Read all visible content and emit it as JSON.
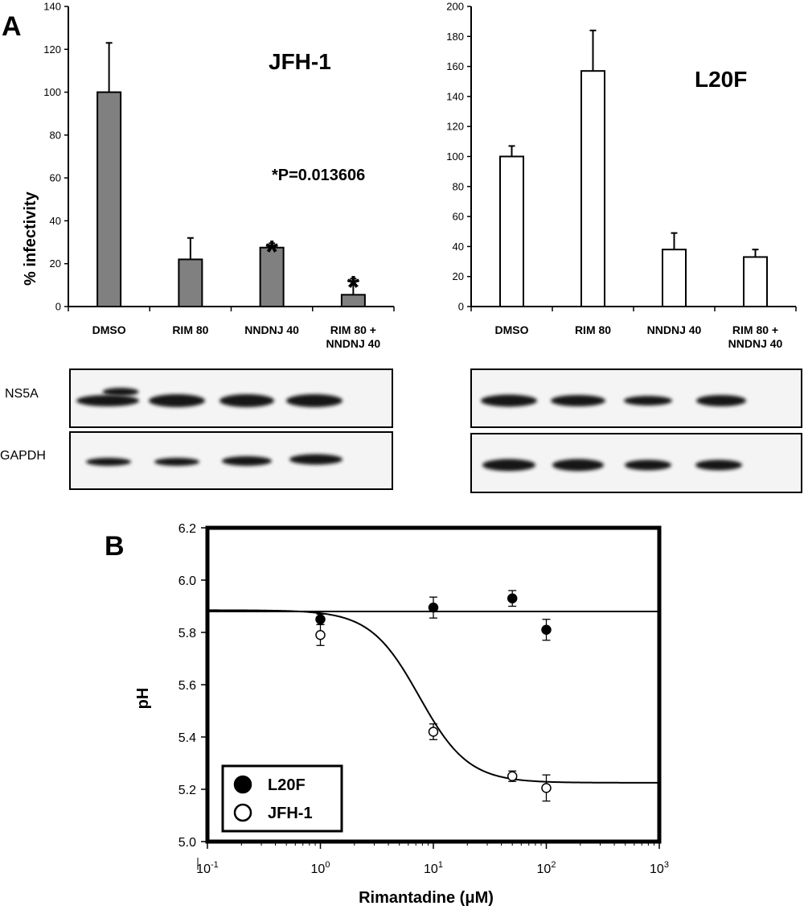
{
  "panel_labels": {
    "a": "A",
    "b": "B"
  },
  "blots": {
    "row_labels": [
      "NS5A",
      "GAPDH"
    ]
  },
  "chart_data": [
    {
      "type": "bar",
      "title": "JFH-1",
      "ylabel": "% infectivity",
      "xlabel": "",
      "ylim": [
        0,
        140
      ],
      "yticks": [
        0,
        20,
        40,
        60,
        80,
        100,
        120,
        140
      ],
      "categories": [
        "DMSO",
        "RIM 80",
        "NNDNJ 40",
        "RIM 80 + NNDNJ 40"
      ],
      "category_lines": [
        [
          "DMSO"
        ],
        [
          "RIM 80"
        ],
        [
          "NNDNJ 40"
        ],
        [
          "RIM 80 +",
          "NNDNJ 40"
        ]
      ],
      "values": [
        100,
        22,
        27.5,
        5.5
      ],
      "errors": [
        23,
        10,
        2,
        7.5
      ],
      "significance_markers": [
        "",
        "",
        "*",
        "*"
      ],
      "annotation": "*P=0.013606",
      "bar_color": "#808080"
    },
    {
      "type": "bar",
      "title": "L20F",
      "ylabel": "",
      "xlabel": "",
      "ylim": [
        0,
        200
      ],
      "yticks": [
        0,
        20,
        40,
        60,
        80,
        100,
        120,
        140,
        160,
        180,
        200
      ],
      "categories": [
        "DMSO",
        "RIM 80",
        "NNDNJ 40",
        "RIM 80 + NNDNJ 40"
      ],
      "category_lines": [
        [
          "DMSO"
        ],
        [
          "RIM 80"
        ],
        [
          "NNDNJ 40"
        ],
        [
          "RIM 80 +",
          "NNDNJ 40"
        ]
      ],
      "values": [
        100,
        157,
        38,
        33
      ],
      "errors": [
        7,
        27,
        11,
        5
      ],
      "bar_color": "#ffffff"
    },
    {
      "type": "scatter",
      "xlabel": "Rimantadine (μM)",
      "ylabel": "pH",
      "x_scale": "log",
      "xlim": [
        0.1,
        1000
      ],
      "ylim": [
        5.0,
        6.2
      ],
      "yticks": [
        "5.0",
        "5.2",
        "5.4",
        "5.6",
        "5.8",
        "6.0",
        "6.2"
      ],
      "xticks": [
        {
          "base": "10",
          "exp": "-1"
        },
        {
          "base": "10",
          "exp": "0"
        },
        {
          "base": "10",
          "exp": "1"
        },
        {
          "base": "10",
          "exp": "2"
        },
        {
          "base": "10",
          "exp": "3"
        }
      ],
      "legend_position": "bottom-left",
      "series": [
        {
          "name": "L20F",
          "marker": "filled-circle",
          "x": [
            1,
            10,
            50,
            100
          ],
          "y": [
            5.85,
            5.895,
            5.93,
            5.81
          ],
          "err": [
            0.02,
            0.04,
            0.03,
            0.04
          ],
          "fit": {
            "kind": "constant",
            "value": 5.88
          }
        },
        {
          "name": "JFH-1",
          "marker": "open-circle",
          "x": [
            1,
            10,
            50,
            100
          ],
          "y": [
            5.79,
            5.42,
            5.25,
            5.205
          ],
          "err": [
            0.04,
            0.03,
            0.02,
            0.05
          ],
          "fit": {
            "kind": "sigmoid",
            "top": 5.885,
            "bottom": 5.225,
            "ec50": 7.5,
            "hill": 2.0
          }
        }
      ]
    }
  ]
}
